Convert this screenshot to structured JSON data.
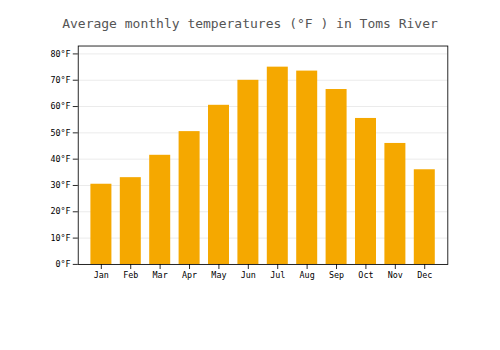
{
  "chart_data": {
    "type": "bar",
    "title": "Average monthly temperatures (°F ) in Toms River",
    "categories": [
      "Jan",
      "Feb",
      "Mar",
      "Apr",
      "May",
      "Jun",
      "Jul",
      "Aug",
      "Sep",
      "Oct",
      "Nov",
      "Dec"
    ],
    "values": [
      30.5,
      33,
      41.5,
      50.5,
      60.5,
      70,
      75,
      73.5,
      66.5,
      55.5,
      46,
      36
    ],
    "color": "#F5A800",
    "ylim": [
      0,
      83
    ],
    "yticks": [
      {
        "value": 0,
        "label": "0°F"
      },
      {
        "value": 10,
        "label": "10°F"
      },
      {
        "value": 20,
        "label": "20°F"
      },
      {
        "value": 30,
        "label": "30°F"
      },
      {
        "value": 40,
        "label": "40°F"
      },
      {
        "value": 50,
        "label": "50°F"
      },
      {
        "value": 60,
        "label": "60°F"
      },
      {
        "value": 70,
        "label": "70°F"
      },
      {
        "value": 80,
        "label": "80°F"
      }
    ],
    "grid": true
  }
}
